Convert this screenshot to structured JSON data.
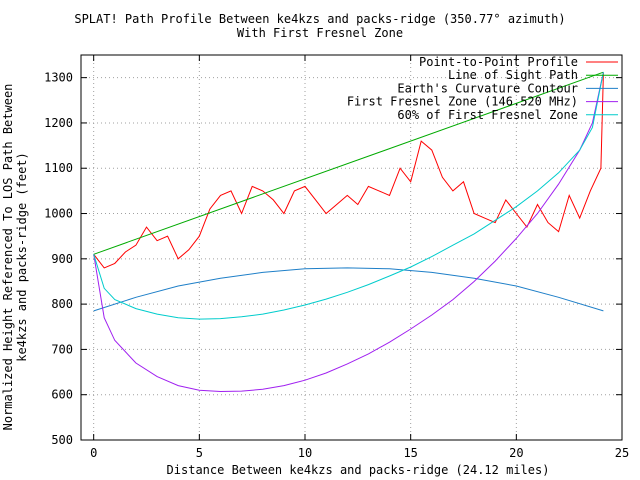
{
  "chart_data": {
    "type": "line",
    "title": "SPLAT! Path Profile Between ke4kzs and packs-ridge (350.77° azimuth)",
    "subtitle": "With First Fresnel Zone",
    "xlabel": "Distance Between ke4kzs and packs-ridge (24.12 miles)",
    "ylabel_line1": "Normalized Height Referenced To LOS Path Between",
    "ylabel_line2": "ke4kzs and packs-ridge (feet)",
    "xlim": [
      -0.6,
      25
    ],
    "ylim": [
      500,
      1350
    ],
    "xticks": [
      0,
      5,
      10,
      15,
      20,
      25
    ],
    "yticks": [
      500,
      600,
      700,
      800,
      900,
      1000,
      1100,
      1200,
      1300
    ],
    "grid": true,
    "legend_position": "top-right",
    "series": [
      {
        "name": "Point-to-Point Profile",
        "color": "#ff0000",
        "x": [
          0,
          0.5,
          1,
          1.5,
          2,
          2.5,
          3,
          3.5,
          4,
          4.5,
          5,
          5.5,
          6,
          6.5,
          7,
          7.5,
          8,
          8.5,
          9,
          9.5,
          10,
          10.5,
          11,
          11.5,
          12,
          12.5,
          13,
          13.5,
          14,
          14.5,
          15,
          15.5,
          16,
          16.5,
          17,
          17.5,
          18,
          18.5,
          19,
          19.5,
          20,
          20.5,
          21,
          21.5,
          22,
          22.5,
          23,
          23.5,
          24,
          24.12
        ],
        "y": [
          910,
          880,
          890,
          915,
          930,
          970,
          940,
          950,
          900,
          920,
          950,
          1010,
          1040,
          1050,
          1000,
          1060,
          1050,
          1030,
          1000,
          1050,
          1060,
          1030,
          1000,
          1020,
          1040,
          1020,
          1060,
          1050,
          1040,
          1100,
          1070,
          1160,
          1140,
          1080,
          1050,
          1070,
          1000,
          990,
          980,
          1030,
          1000,
          970,
          1020,
          980,
          960,
          1040,
          990,
          1050,
          1100,
          1310
        ]
      },
      {
        "name": "Line of Sight Path",
        "color": "#00aa00",
        "x": [
          0,
          24.12
        ],
        "y": [
          910,
          1312
        ]
      },
      {
        "name": "Earth's Curvature Contour",
        "color": "#1e7fc8",
        "x": [
          0,
          2,
          4,
          6,
          8,
          10,
          12,
          14,
          16,
          18,
          20,
          22,
          24.12
        ],
        "y": [
          785,
          815,
          840,
          857,
          870,
          878,
          880,
          878,
          870,
          857,
          840,
          815,
          785
        ]
      },
      {
        "name": "First Fresnel Zone (146.520 MHz)",
        "color": "#a020f0",
        "x": [
          0,
          0.5,
          1,
          2,
          3,
          4,
          5,
          6,
          7,
          8,
          9,
          10,
          11,
          12,
          13,
          14,
          15,
          16,
          17,
          18,
          19,
          20,
          21,
          22,
          23,
          23.6,
          24.12
        ],
        "y": [
          910,
          770,
          720,
          670,
          640,
          620,
          610,
          607,
          608,
          612,
          620,
          632,
          648,
          668,
          690,
          716,
          745,
          776,
          810,
          850,
          895,
          945,
          1000,
          1065,
          1140,
          1200,
          1312
        ]
      },
      {
        "name": "60% of First Fresnel Zone",
        "color": "#00cccc",
        "x": [
          0,
          0.5,
          1,
          2,
          3,
          4,
          5,
          6,
          7,
          8,
          9,
          10,
          11,
          12,
          13,
          14,
          15,
          16,
          17,
          18,
          19,
          20,
          21,
          22,
          23,
          23.6,
          24.12
        ],
        "y": [
          910,
          835,
          810,
          790,
          778,
          770,
          767,
          768,
          772,
          778,
          787,
          798,
          811,
          826,
          843,
          862,
          882,
          905,
          930,
          955,
          985,
          1015,
          1050,
          1090,
          1140,
          1190,
          1312
        ]
      }
    ]
  }
}
